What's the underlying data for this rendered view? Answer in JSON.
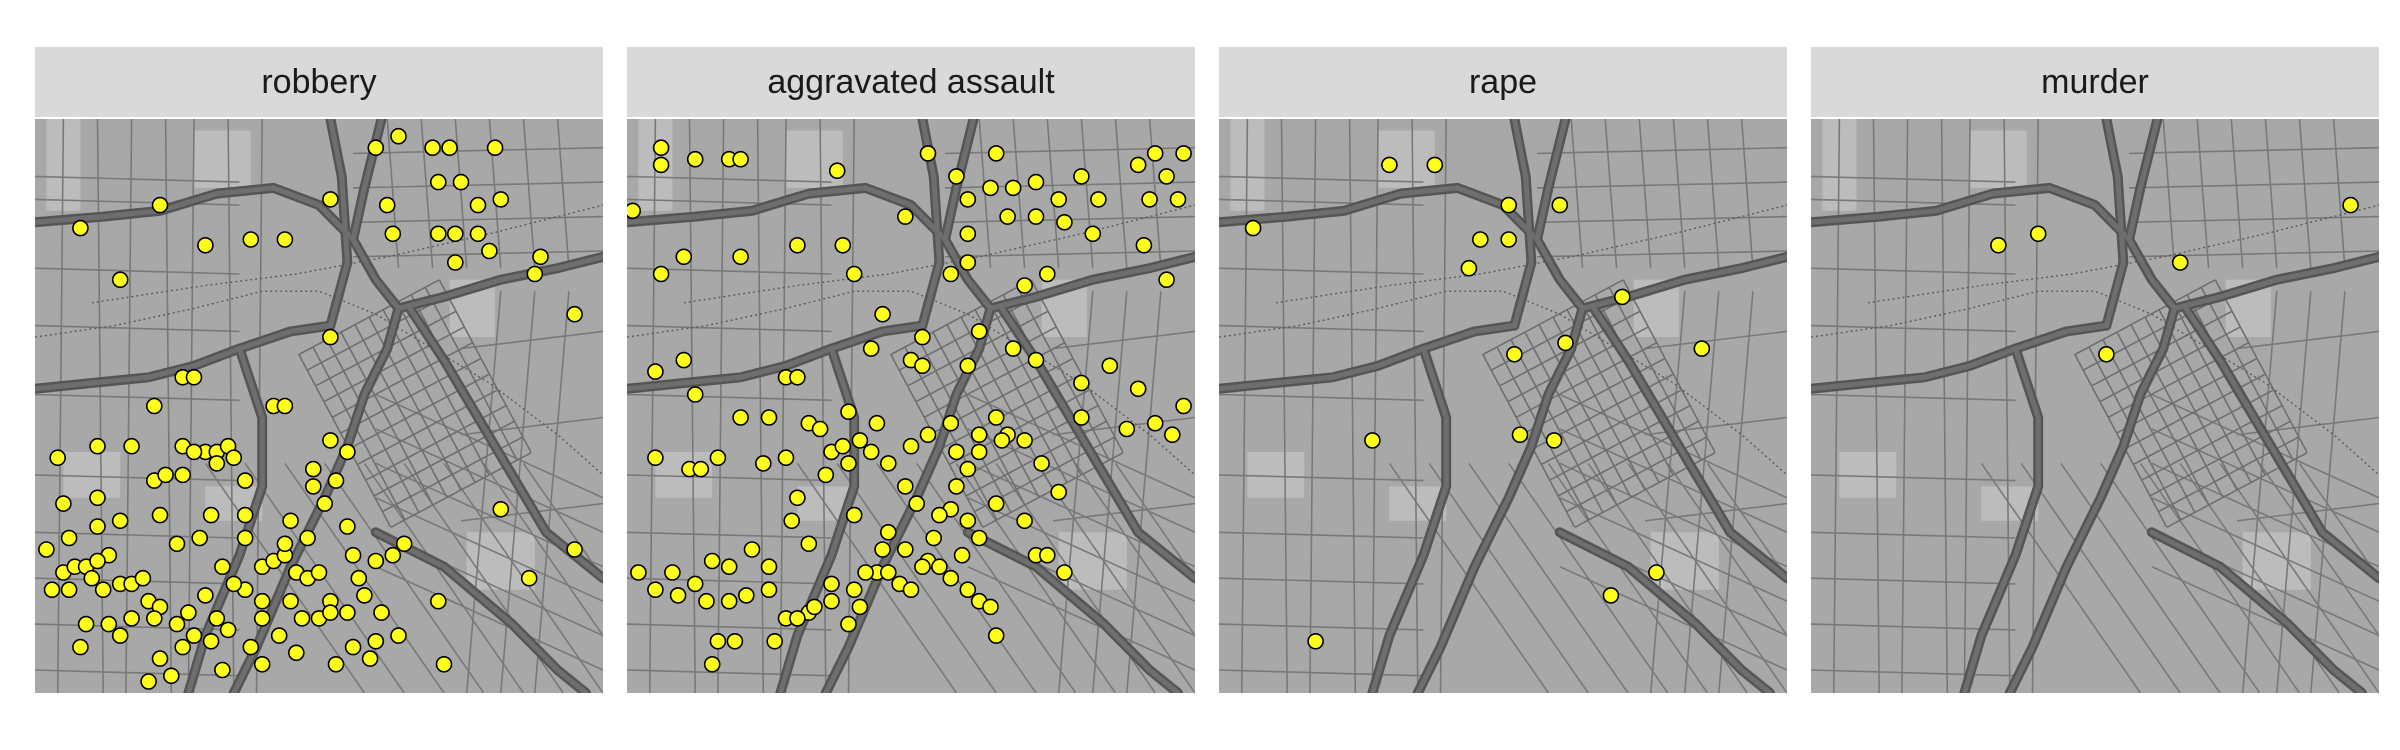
{
  "figure": {
    "panels": [
      {
        "title": "robbery",
        "points": [
          [
            0.22,
            0.85
          ],
          [
            0.33,
            0.22
          ],
          [
            0.4,
            0.16
          ],
          [
            0.52,
            0.86
          ],
          [
            0.6,
            0.95
          ],
          [
            0.64,
            0.97
          ],
          [
            0.7,
            0.95
          ],
          [
            0.73,
            0.95
          ],
          [
            0.81,
            0.95
          ],
          [
            0.71,
            0.89
          ],
          [
            0.75,
            0.89
          ],
          [
            0.78,
            0.85
          ],
          [
            0.82,
            0.86
          ],
          [
            0.62,
            0.85
          ],
          [
            0.63,
            0.8
          ],
          [
            0.71,
            0.8
          ],
          [
            0.74,
            0.8
          ],
          [
            0.78,
            0.8
          ],
          [
            0.74,
            0.75
          ],
          [
            0.8,
            0.77
          ],
          [
            0.88,
            0.73
          ],
          [
            0.89,
            0.76
          ],
          [
            0.08,
            0.81
          ],
          [
            0.15,
            0.72
          ],
          [
            0.3,
            0.78
          ],
          [
            0.38,
            0.79
          ],
          [
            0.44,
            0.79
          ],
          [
            0.95,
            0.66
          ],
          [
            0.82,
            0.32
          ],
          [
            0.95,
            0.25
          ],
          [
            0.87,
            0.2
          ],
          [
            0.52,
            0.62
          ],
          [
            0.26,
            0.55
          ],
          [
            0.28,
            0.55
          ],
          [
            0.21,
            0.5
          ],
          [
            0.42,
            0.5
          ],
          [
            0.44,
            0.5
          ],
          [
            0.04,
            0.41
          ],
          [
            0.3,
            0.42
          ],
          [
            0.32,
            0.42
          ],
          [
            0.34,
            0.43
          ],
          [
            0.26,
            0.43
          ],
          [
            0.28,
            0.42
          ],
          [
            0.26,
            0.38
          ],
          [
            0.11,
            0.43
          ],
          [
            0.17,
            0.43
          ],
          [
            0.21,
            0.37
          ],
          [
            0.23,
            0.38
          ],
          [
            0.32,
            0.4
          ],
          [
            0.35,
            0.41
          ],
          [
            0.37,
            0.37
          ],
          [
            0.37,
            0.31
          ],
          [
            0.37,
            0.27
          ],
          [
            0.25,
            0.26
          ],
          [
            0.22,
            0.31
          ],
          [
            0.11,
            0.34
          ],
          [
            0.11,
            0.29
          ],
          [
            0.05,
            0.33
          ],
          [
            0.02,
            0.25
          ],
          [
            0.06,
            0.27
          ],
          [
            0.13,
            0.24
          ],
          [
            0.05,
            0.21
          ],
          [
            0.07,
            0.22
          ],
          [
            0.09,
            0.22
          ],
          [
            0.11,
            0.23
          ],
          [
            0.1,
            0.2
          ],
          [
            0.12,
            0.18
          ],
          [
            0.03,
            0.18
          ],
          [
            0.06,
            0.18
          ],
          [
            0.15,
            0.19
          ],
          [
            0.17,
            0.19
          ],
          [
            0.19,
            0.2
          ],
          [
            0.2,
            0.16
          ],
          [
            0.22,
            0.15
          ],
          [
            0.25,
            0.12
          ],
          [
            0.28,
            0.1
          ],
          [
            0.26,
            0.08
          ],
          [
            0.31,
            0.09
          ],
          [
            0.34,
            0.11
          ],
          [
            0.38,
            0.08
          ],
          [
            0.43,
            0.1
          ],
          [
            0.37,
            0.18
          ],
          [
            0.4,
            0.22
          ],
          [
            0.42,
            0.23
          ],
          [
            0.44,
            0.24
          ],
          [
            0.46,
            0.21
          ],
          [
            0.48,
            0.2
          ],
          [
            0.5,
            0.21
          ],
          [
            0.52,
            0.16
          ],
          [
            0.55,
            0.14
          ],
          [
            0.58,
            0.17
          ],
          [
            0.61,
            0.14
          ],
          [
            0.64,
            0.1
          ],
          [
            0.59,
            0.06
          ],
          [
            0.6,
            0.09
          ],
          [
            0.56,
            0.08
          ],
          [
            0.5,
            0.13
          ],
          [
            0.45,
            0.3
          ],
          [
            0.51,
            0.33
          ],
          [
            0.49,
            0.36
          ],
          [
            0.53,
            0.37
          ],
          [
            0.55,
            0.29
          ],
          [
            0.56,
            0.24
          ],
          [
            0.6,
            0.23
          ],
          [
            0.63,
            0.24
          ],
          [
            0.65,
            0.26
          ],
          [
            0.71,
            0.16
          ],
          [
            0.72,
            0.05
          ],
          [
            0.4,
            0.05
          ],
          [
            0.22,
            0.06
          ],
          [
            0.24,
            0.03
          ],
          [
            0.2,
            0.02
          ],
          [
            0.15,
            0.1
          ],
          [
            0.08,
            0.08
          ],
          [
            0.09,
            0.12
          ],
          [
            0.13,
            0.12
          ],
          [
            0.17,
            0.13
          ],
          [
            0.21,
            0.13
          ],
          [
            0.27,
            0.14
          ],
          [
            0.32,
            0.13
          ],
          [
            0.3,
            0.17
          ],
          [
            0.35,
            0.19
          ],
          [
            0.45,
            0.16
          ],
          [
            0.47,
            0.13
          ],
          [
            0.53,
            0.05
          ],
          [
            0.46,
            0.07
          ],
          [
            0.33,
            0.04
          ],
          [
            0.52,
            0.14
          ],
          [
            0.44,
            0.26
          ],
          [
            0.48,
            0.27
          ],
          [
            0.57,
            0.2
          ],
          [
            0.49,
            0.39
          ],
          [
            0.55,
            0.42
          ],
          [
            0.52,
            0.44
          ],
          [
            0.31,
            0.31
          ],
          [
            0.15,
            0.3
          ],
          [
            0.29,
            0.27
          ],
          [
            0.4,
            0.13
          ]
        ]
      },
      {
        "title": "aggravated assault",
        "points": [
          [
            0.06,
            0.95
          ],
          [
            0.06,
            0.92
          ],
          [
            0.12,
            0.93
          ],
          [
            0.18,
            0.93
          ],
          [
            0.2,
            0.93
          ],
          [
            0.37,
            0.91
          ],
          [
            0.01,
            0.84
          ],
          [
            0.06,
            0.73
          ],
          [
            0.1,
            0.76
          ],
          [
            0.2,
            0.76
          ],
          [
            0.3,
            0.78
          ],
          [
            0.38,
            0.78
          ],
          [
            0.4,
            0.73
          ],
          [
            0.05,
            0.56
          ],
          [
            0.1,
            0.58
          ],
          [
            0.12,
            0.52
          ],
          [
            0.2,
            0.48
          ],
          [
            0.28,
            0.55
          ],
          [
            0.3,
            0.55
          ],
          [
            0.32,
            0.47
          ],
          [
            0.34,
            0.46
          ],
          [
            0.25,
            0.48
          ],
          [
            0.16,
            0.41
          ],
          [
            0.05,
            0.41
          ],
          [
            0.11,
            0.39
          ],
          [
            0.13,
            0.39
          ],
          [
            0.24,
            0.4
          ],
          [
            0.28,
            0.41
          ],
          [
            0.36,
            0.42
          ],
          [
            0.38,
            0.43
          ],
          [
            0.5,
            0.58
          ],
          [
            0.52,
            0.62
          ],
          [
            0.62,
            0.63
          ],
          [
            0.68,
            0.6
          ],
          [
            0.72,
            0.58
          ],
          [
            0.8,
            0.54
          ],
          [
            0.85,
            0.57
          ],
          [
            0.9,
            0.53
          ],
          [
            0.93,
            0.47
          ],
          [
            0.96,
            0.45
          ],
          [
            0.88,
            0.46
          ],
          [
            0.98,
            0.5
          ],
          [
            0.95,
            0.72
          ],
          [
            0.91,
            0.78
          ],
          [
            0.82,
            0.8
          ],
          [
            0.67,
            0.83
          ],
          [
            0.6,
            0.86
          ],
          [
            0.64,
            0.88
          ],
          [
            0.68,
            0.88
          ],
          [
            0.72,
            0.89
          ],
          [
            0.8,
            0.9
          ],
          [
            0.95,
            0.9
          ],
          [
            0.9,
            0.92
          ],
          [
            0.93,
            0.94
          ],
          [
            0.98,
            0.94
          ],
          [
            0.65,
            0.94
          ],
          [
            0.53,
            0.94
          ],
          [
            0.58,
            0.9
          ],
          [
            0.83,
            0.86
          ],
          [
            0.92,
            0.86
          ],
          [
            0.97,
            0.86
          ],
          [
            0.76,
            0.86
          ],
          [
            0.72,
            0.83
          ],
          [
            0.77,
            0.82
          ],
          [
            0.49,
            0.83
          ],
          [
            0.6,
            0.8
          ],
          [
            0.6,
            0.75
          ],
          [
            0.57,
            0.73
          ],
          [
            0.7,
            0.71
          ],
          [
            0.74,
            0.73
          ],
          [
            0.45,
            0.66
          ],
          [
            0.43,
            0.6
          ],
          [
            0.52,
            0.57
          ],
          [
            0.6,
            0.57
          ],
          [
            0.65,
            0.48
          ],
          [
            0.57,
            0.47
          ],
          [
            0.62,
            0.45
          ],
          [
            0.67,
            0.45
          ],
          [
            0.8,
            0.48
          ],
          [
            0.02,
            0.21
          ],
          [
            0.05,
            0.18
          ],
          [
            0.08,
            0.21
          ],
          [
            0.09,
            0.17
          ],
          [
            0.12,
            0.19
          ],
          [
            0.14,
            0.16
          ],
          [
            0.15,
            0.23
          ],
          [
            0.18,
            0.22
          ],
          [
            0.18,
            0.16
          ],
          [
            0.21,
            0.17
          ],
          [
            0.25,
            0.18
          ],
          [
            0.28,
            0.13
          ],
          [
            0.32,
            0.14
          ],
          [
            0.36,
            0.16
          ],
          [
            0.39,
            0.12
          ],
          [
            0.41,
            0.15
          ],
          [
            0.44,
            0.21
          ],
          [
            0.46,
            0.21
          ],
          [
            0.48,
            0.19
          ],
          [
            0.5,
            0.18
          ],
          [
            0.53,
            0.23
          ],
          [
            0.55,
            0.22
          ],
          [
            0.57,
            0.2
          ],
          [
            0.59,
            0.24
          ],
          [
            0.6,
            0.18
          ],
          [
            0.62,
            0.16
          ],
          [
            0.64,
            0.15
          ],
          [
            0.65,
            0.1
          ],
          [
            0.15,
            0.05
          ],
          [
            0.16,
            0.09
          ],
          [
            0.19,
            0.09
          ],
          [
            0.26,
            0.09
          ],
          [
            0.3,
            0.13
          ],
          [
            0.33,
            0.15
          ],
          [
            0.36,
            0.19
          ],
          [
            0.4,
            0.18
          ],
          [
            0.42,
            0.21
          ],
          [
            0.45,
            0.25
          ],
          [
            0.49,
            0.25
          ],
          [
            0.52,
            0.22
          ],
          [
            0.54,
            0.27
          ],
          [
            0.57,
            0.32
          ],
          [
            0.6,
            0.3
          ],
          [
            0.62,
            0.27
          ],
          [
            0.65,
            0.33
          ],
          [
            0.7,
            0.3
          ],
          [
            0.72,
            0.24
          ],
          [
            0.74,
            0.24
          ],
          [
            0.77,
            0.21
          ],
          [
            0.35,
            0.38
          ],
          [
            0.39,
            0.4
          ],
          [
            0.43,
            0.42
          ],
          [
            0.46,
            0.4
          ],
          [
            0.49,
            0.36
          ],
          [
            0.51,
            0.33
          ],
          [
            0.55,
            0.31
          ],
          [
            0.58,
            0.36
          ],
          [
            0.6,
            0.39
          ],
          [
            0.62,
            0.42
          ],
          [
            0.66,
            0.44
          ],
          [
            0.5,
            0.43
          ],
          [
            0.53,
            0.45
          ],
          [
            0.41,
            0.44
          ],
          [
            0.44,
            0.47
          ],
          [
            0.39,
            0.49
          ],
          [
            0.46,
            0.28
          ],
          [
            0.4,
            0.31
          ],
          [
            0.32,
            0.26
          ],
          [
            0.29,
            0.3
          ],
          [
            0.3,
            0.34
          ],
          [
            0.25,
            0.22
          ],
          [
            0.22,
            0.25
          ],
          [
            0.58,
            0.42
          ],
          [
            0.7,
            0.44
          ],
          [
            0.73,
            0.4
          ],
          [
            0.76,
            0.35
          ]
        ]
      },
      {
        "title": "rape",
        "points": [
          [
            0.17,
            0.09
          ],
          [
            0.69,
            0.17
          ],
          [
            0.77,
            0.21
          ],
          [
            0.27,
            0.44
          ],
          [
            0.53,
            0.45
          ],
          [
            0.59,
            0.44
          ],
          [
            0.52,
            0.59
          ],
          [
            0.61,
            0.61
          ],
          [
            0.85,
            0.6
          ],
          [
            0.71,
            0.69
          ],
          [
            0.44,
            0.74
          ],
          [
            0.46,
            0.79
          ],
          [
            0.51,
            0.79
          ],
          [
            0.06,
            0.81
          ],
          [
            0.51,
            0.85
          ],
          [
            0.6,
            0.85
          ],
          [
            0.3,
            0.92
          ],
          [
            0.38,
            0.92
          ]
        ]
      },
      {
        "title": "murder",
        "points": [
          [
            0.52,
            0.59
          ],
          [
            0.65,
            0.75
          ],
          [
            0.33,
            0.78
          ],
          [
            0.4,
            0.8
          ],
          [
            0.95,
            0.85
          ]
        ]
      }
    ]
  }
}
